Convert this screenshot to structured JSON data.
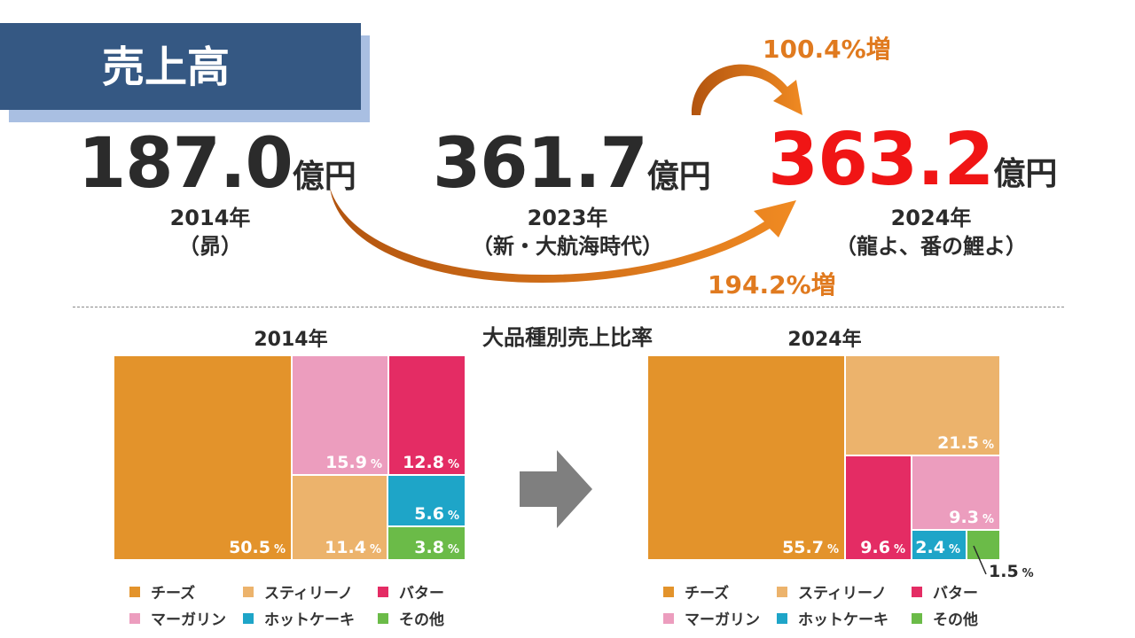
{
  "title": "売上高",
  "sales": [
    {
      "value": "187.0",
      "unit": "億円",
      "year": "2014年",
      "era": "（昴）",
      "color": "#2b2b2b"
    },
    {
      "value": "361.7",
      "unit": "億円",
      "year": "2023年",
      "era": "（新・大航海時代）",
      "color": "#2b2b2b"
    },
    {
      "value": "363.2",
      "unit": "億円",
      "year": "2024年",
      "era": "（龍よ、番の鯉よ）",
      "color": "#f01515"
    }
  ],
  "growth_yoy": "100.4%増",
  "growth_10y": "194.2%増",
  "section_title": "大品種別売上比率",
  "percent_unit": "%",
  "chart_data": [
    {
      "type": "treemap",
      "title": "2014年",
      "series": [
        {
          "name": "チーズ",
          "value": 50.5,
          "label": "50.5",
          "color": "#e3932b"
        },
        {
          "name": "マーガリン",
          "value": 15.9,
          "label": "15.9",
          "color": "#ec9dbe"
        },
        {
          "name": "バター",
          "value": 12.8,
          "label": "12.8",
          "color": "#e42c64"
        },
        {
          "name": "スティリーノ",
          "value": 11.4,
          "label": "11.4",
          "color": "#ecb36c"
        },
        {
          "name": "ホットケーキ",
          "value": 5.6,
          "label": "5.6",
          "color": "#1ea5c8"
        },
        {
          "name": "その他",
          "value": 3.8,
          "label": "3.8",
          "color": "#6bbb48"
        }
      ]
    },
    {
      "type": "treemap",
      "title": "2024年",
      "series": [
        {
          "name": "チーズ",
          "value": 55.7,
          "label": "55.7",
          "color": "#e3932b"
        },
        {
          "name": "スティリーノ",
          "value": 21.5,
          "label": "21.5",
          "color": "#ecb36c"
        },
        {
          "name": "バター",
          "value": 9.6,
          "label": "9.6",
          "color": "#e42c64"
        },
        {
          "name": "マーガリン",
          "value": 9.3,
          "label": "9.3",
          "color": "#ec9dbe"
        },
        {
          "name": "ホットケーキ",
          "value": 2.4,
          "label": "2.4",
          "color": "#1ea5c8"
        },
        {
          "name": "その他",
          "value": 1.5,
          "label": "1.5",
          "color": "#6bbb48"
        }
      ]
    }
  ],
  "legend": [
    {
      "name": "チーズ",
      "color": "#e3932b"
    },
    {
      "name": "スティリーノ",
      "color": "#ecb36c"
    },
    {
      "name": "バター",
      "color": "#e42c64"
    },
    {
      "name": "マーガリン",
      "color": "#ec9dbe"
    },
    {
      "name": "ホットケーキ",
      "color": "#1ea5c8"
    },
    {
      "name": "その他",
      "color": "#6bbb48"
    }
  ]
}
